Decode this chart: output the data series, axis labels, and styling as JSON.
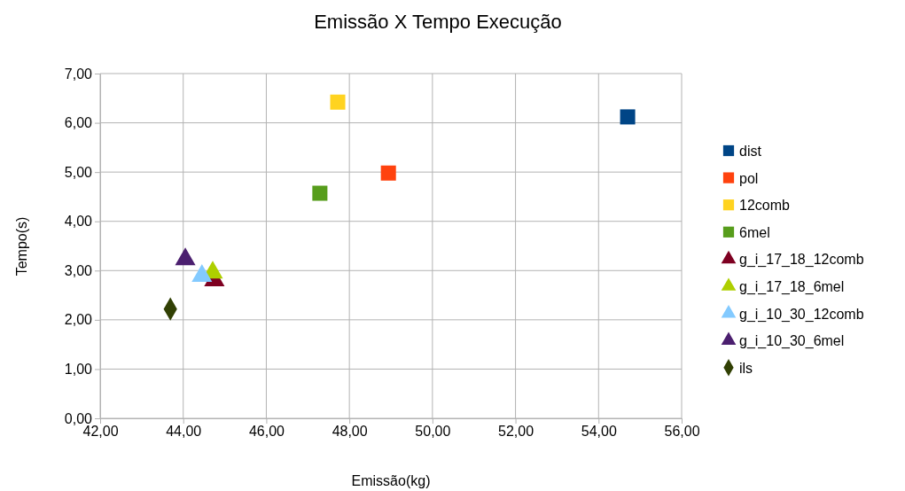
{
  "chart_data": {
    "type": "scatter",
    "title": "Emissão X Tempo Execução",
    "xlabel": "Emissão(kg)",
    "ylabel": "Tempo(s)",
    "xlim": [
      42,
      56
    ],
    "ylim": [
      0,
      7
    ],
    "xticks": [
      {
        "value": 42,
        "label": "42,00"
      },
      {
        "value": 44,
        "label": "44,00"
      },
      {
        "value": 46,
        "label": "46,00"
      },
      {
        "value": 48,
        "label": "48,00"
      },
      {
        "value": 50,
        "label": "50,00"
      },
      {
        "value": 52,
        "label": "52,00"
      },
      {
        "value": 54,
        "label": "54,00"
      },
      {
        "value": 56,
        "label": "56,00"
      }
    ],
    "yticks": [
      {
        "value": 0,
        "label": "0,00"
      },
      {
        "value": 1,
        "label": "1,00"
      },
      {
        "value": 2,
        "label": "2,00"
      },
      {
        "value": 3,
        "label": "3,00"
      },
      {
        "value": 4,
        "label": "4,00"
      },
      {
        "value": 5,
        "label": "5,00"
      },
      {
        "value": 6,
        "label": "6,00"
      },
      {
        "value": 7,
        "label": "7,00"
      }
    ],
    "grid": true,
    "legend": "right",
    "series": [
      {
        "name": "dist",
        "color": "#004586",
        "marker": "square",
        "x": [
          54.7
        ],
        "values": [
          6.12
        ]
      },
      {
        "name": "pol",
        "color": "#ff420e",
        "marker": "square",
        "x": [
          48.94
        ],
        "values": [
          4.98
        ]
      },
      {
        "name": "12comb",
        "color": "#ffd320",
        "marker": "square",
        "x": [
          47.72
        ],
        "values": [
          6.42
        ]
      },
      {
        "name": "6mel",
        "color": "#579d1c",
        "marker": "square",
        "x": [
          47.29
        ],
        "values": [
          4.57
        ]
      },
      {
        "name": "g_i_17_18_12comb",
        "color": "#7e0021",
        "marker": "triangle",
        "x": [
          44.75
        ],
        "values": [
          2.8
        ]
      },
      {
        "name": "g_i_17_18_6mel",
        "color": "#aecf00",
        "marker": "triangle",
        "x": [
          44.71
        ],
        "values": [
          2.96
        ]
      },
      {
        "name": "g_i_10_30_12comb",
        "color": "#83caff",
        "marker": "triangle",
        "x": [
          44.45
        ],
        "values": [
          2.89
        ]
      },
      {
        "name": "g_i_10_30_6mel",
        "color": "#4b1f6f",
        "marker": "triangle",
        "x": [
          44.05
        ],
        "values": [
          3.23
        ]
      },
      {
        "name": "ils",
        "color": "#314004",
        "marker": "diamond",
        "x": [
          43.69
        ],
        "values": [
          2.22
        ]
      }
    ]
  }
}
